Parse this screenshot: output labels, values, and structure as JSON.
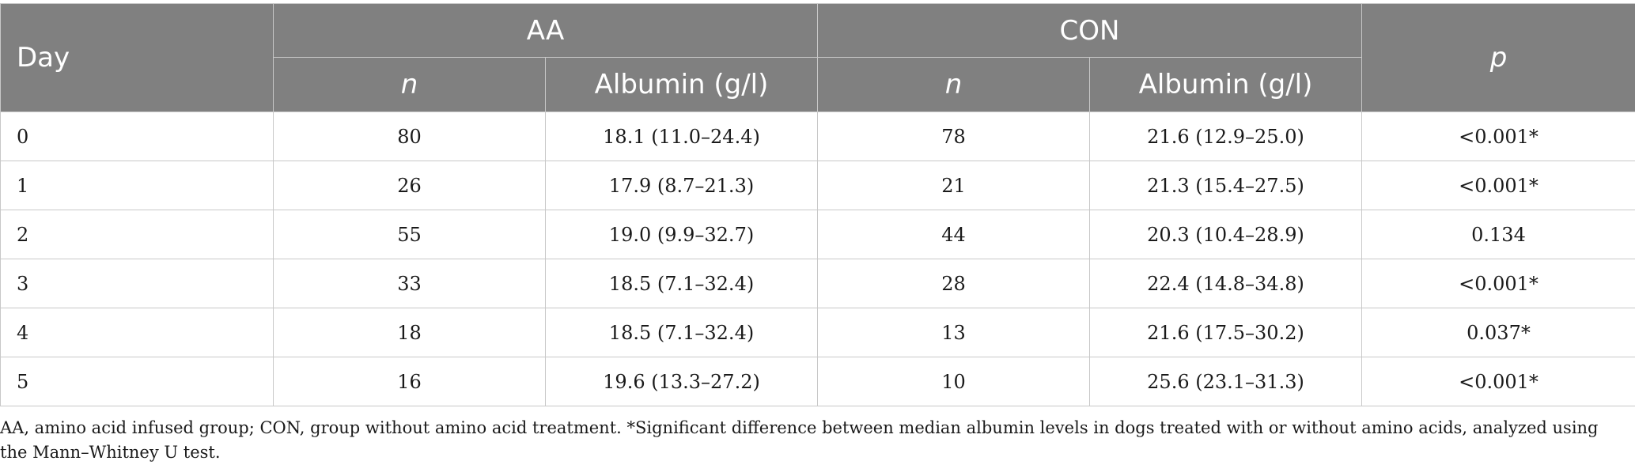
{
  "table": {
    "header": {
      "day": "Day",
      "group_aa": "AA",
      "group_con": "CON",
      "p": "p",
      "n": "n",
      "albumin": "Albumin (g/l)"
    },
    "rows": [
      {
        "day": "0",
        "aa_n": "80",
        "aa_albumin": "18.1 (11.0–24.4)",
        "con_n": "78",
        "con_albumin": "21.6 (12.9–25.0)",
        "p": "<0.001*"
      },
      {
        "day": "1",
        "aa_n": "26",
        "aa_albumin": "17.9 (8.7–21.3)",
        "con_n": "21",
        "con_albumin": "21.3 (15.4–27.5)",
        "p": "<0.001*"
      },
      {
        "day": "2",
        "aa_n": "55",
        "aa_albumin": "19.0 (9.9–32.7)",
        "con_n": "44",
        "con_albumin": "20.3 (10.4–28.9)",
        "p": "0.134"
      },
      {
        "day": "3",
        "aa_n": "33",
        "aa_albumin": "18.5 (7.1–32.4)",
        "con_n": "28",
        "con_albumin": "22.4 (14.8–34.8)",
        "p": "<0.001*"
      },
      {
        "day": "4",
        "aa_n": "18",
        "aa_albumin": "18.5 (7.1–32.4)",
        "con_n": "13",
        "con_albumin": "21.6 (17.5–30.2)",
        "p": "0.037*"
      },
      {
        "day": "5",
        "aa_n": "16",
        "aa_albumin": "19.6 (13.3–27.2)",
        "con_n": "10",
        "con_albumin": "25.6 (23.1–31.3)",
        "p": "<0.001*"
      }
    ]
  },
  "footnote": "AA, amino acid infused group; CON, group without amino acid treatment. *Significant difference between median albumin levels in dogs treated with or without amino acids, analyzed using the Mann–Whitney U test.",
  "colors": {
    "header_bg": "#808080",
    "header_text": "#ffffff",
    "grid": "#c8c8c8"
  }
}
